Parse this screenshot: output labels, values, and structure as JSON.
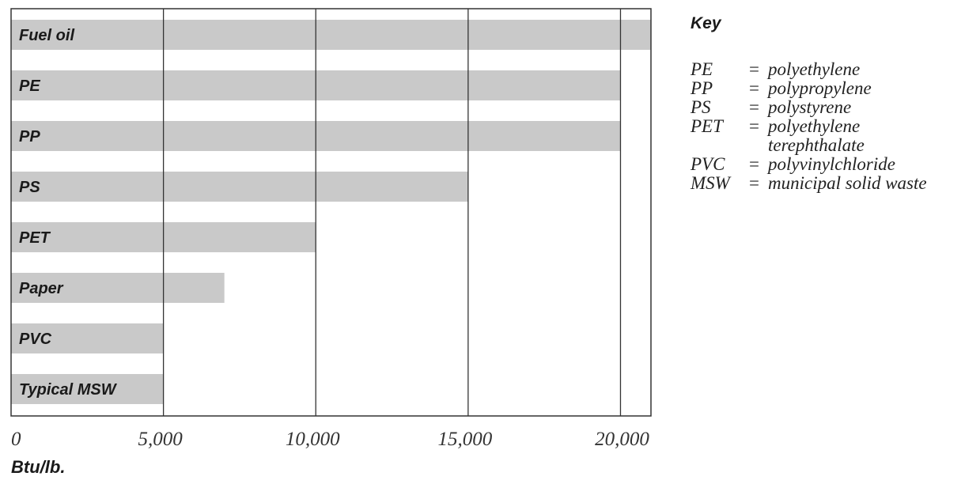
{
  "chart_data": {
    "type": "bar",
    "orientation": "horizontal",
    "categories": [
      "Fuel oil",
      "PE",
      "PP",
      "PS",
      "PET",
      "Paper",
      "PVC",
      "Typical MSW"
    ],
    "values": [
      21000,
      20000,
      20000,
      15000,
      10000,
      7000,
      5000,
      5000
    ],
    "xlim": [
      0,
      21000
    ],
    "xticks": [
      0,
      5000,
      10000,
      15000,
      20000
    ],
    "xtick_labels": [
      "0",
      "5,000",
      "10,000",
      "15,000",
      "20,000"
    ],
    "xlabel": "Btu/lb.",
    "grid": "vertical",
    "bar_color": "#c9c9c9",
    "gridline_color": "#333333"
  },
  "key": {
    "title": "Key",
    "entries": [
      {
        "abbr": "PE",
        "eq": "=",
        "def": "polyethylene",
        "def_cont": ""
      },
      {
        "abbr": "PP",
        "eq": "=",
        "def": "polypropylene",
        "def_cont": ""
      },
      {
        "abbr": "PS",
        "eq": "=",
        "def": "polystyrene",
        "def_cont": ""
      },
      {
        "abbr": "PET",
        "eq": "=",
        "def": "polyethylene",
        "def_cont": "terephthalate"
      },
      {
        "abbr": "PVC",
        "eq": "=",
        "def": "polyvinylchloride",
        "def_cont": ""
      },
      {
        "abbr": "MSW",
        "eq": "=",
        "def": "municipal solid waste",
        "def_cont": ""
      }
    ]
  }
}
